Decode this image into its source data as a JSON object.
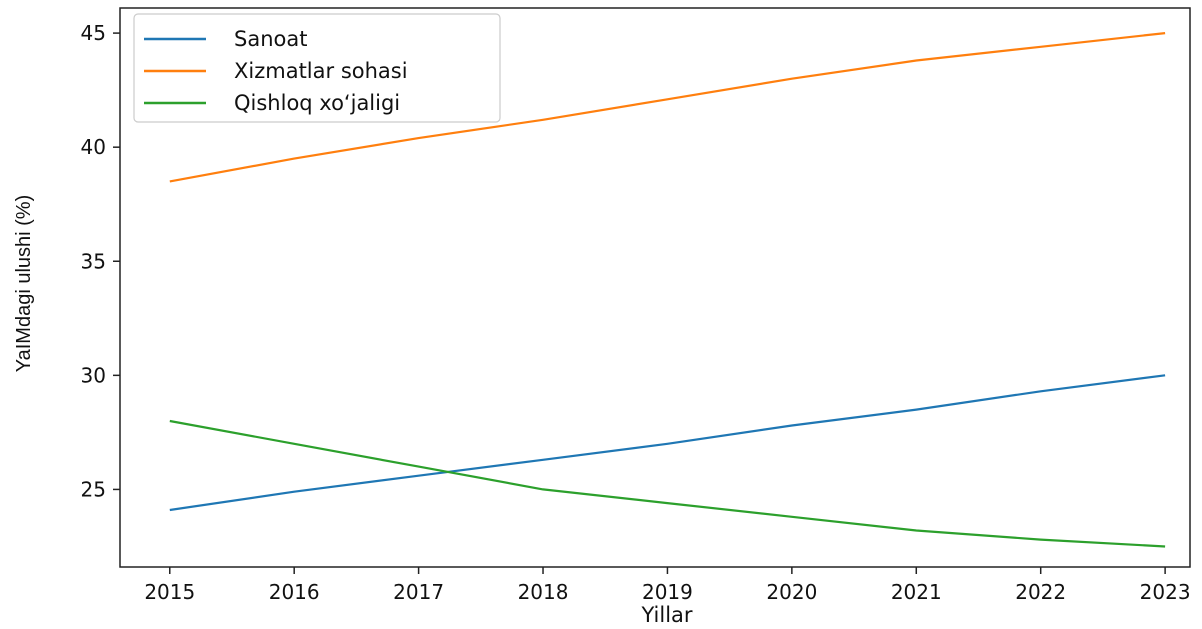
{
  "chart_data": {
    "type": "line",
    "title": "",
    "xlabel": "Yillar",
    "ylabel": "YaIMdagi ulushi (%)",
    "x": [
      2015,
      2016,
      2017,
      2018,
      2019,
      2020,
      2021,
      2022,
      2023
    ],
    "x_ticks": [
      "2015",
      "2016",
      "2017",
      "2018",
      "2019",
      "2020",
      "2021",
      "2022",
      "2023"
    ],
    "y_ticks": [
      "25",
      "30",
      "35",
      "40",
      "45"
    ],
    "xlim": [
      2014.6,
      2023.2
    ],
    "ylim": [
      21.6,
      46.1
    ],
    "grid": false,
    "legend_position": "top-left",
    "series": [
      {
        "name": "Sanoat",
        "color": "#1f77b4",
        "values": [
          24.1,
          24.9,
          25.6,
          26.3,
          27.0,
          27.8,
          28.5,
          29.3,
          30.0
        ]
      },
      {
        "name": "Xizmatlar sohasi",
        "color": "#ff7f0e",
        "values": [
          38.5,
          39.5,
          40.4,
          41.2,
          42.1,
          43.0,
          43.8,
          44.4,
          45.0
        ]
      },
      {
        "name": "Qishloq xo‘jaligi",
        "color": "#2ca02c",
        "values": [
          28.0,
          27.0,
          26.0,
          25.0,
          24.4,
          23.8,
          23.2,
          22.8,
          22.5
        ]
      }
    ]
  }
}
